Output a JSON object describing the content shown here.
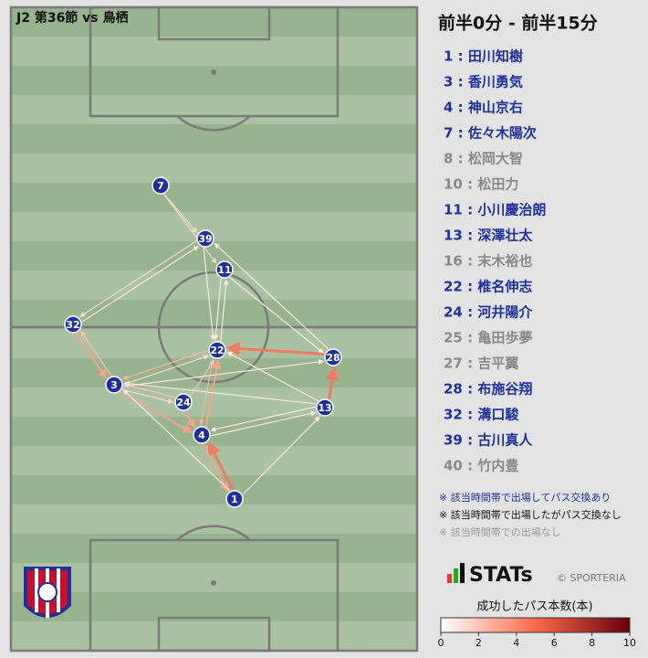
{
  "header": {
    "title": "J2 第36節 vs 鳥栖",
    "period": "前半0分 - 前半15分"
  },
  "players": [
    {
      "label": "1 : 田川知樹",
      "color": "#1f2f9c"
    },
    {
      "label": "3 : 香川勇気",
      "color": "#1f2f9c"
    },
    {
      "label": "4 : 神山京右",
      "color": "#1f2f9c"
    },
    {
      "label": "7 : 佐々木陽次",
      "color": "#1f2f9c"
    },
    {
      "label": "8 : 松岡大智",
      "color": "#888888"
    },
    {
      "label": "10 : 松田力",
      "color": "#888888"
    },
    {
      "label": "11 : 小川慶治朗",
      "color": "#1f2f9c"
    },
    {
      "label": "13 : 深澤壮太",
      "color": "#1f2f9c"
    },
    {
      "label": "16 : 末木裕也",
      "color": "#888888"
    },
    {
      "label": "22 : 椎名伸志",
      "color": "#1f2f9c"
    },
    {
      "label": "24 : 河井陽介",
      "color": "#1f2f9c"
    },
    {
      "label": "25 : 亀田歩夢",
      "color": "#888888"
    },
    {
      "label": "27 : 吉平翼",
      "color": "#888888"
    },
    {
      "label": "28 : 布施谷翔",
      "color": "#1f2f9c"
    },
    {
      "label": "32 : 溝口駿",
      "color": "#1f2f9c"
    },
    {
      "label": "39 : 古川真人",
      "color": "#1f2f9c"
    },
    {
      "label": "40 : 竹内豊",
      "color": "#888888"
    }
  ],
  "nodes": [
    {
      "label": "7"
    },
    {
      "label": "39"
    },
    {
      "label": "11"
    },
    {
      "label": "32"
    },
    {
      "label": "22"
    },
    {
      "label": "28"
    },
    {
      "label": "3"
    },
    {
      "label": "24"
    },
    {
      "label": "13"
    },
    {
      "label": "4"
    },
    {
      "label": "1"
    }
  ],
  "notes": [
    {
      "text": "※ 該当時間帯で出場してパス交換あり",
      "color": "#1f2f9c"
    },
    {
      "text": "※ 該当時間帯で出場したがパス交換なし",
      "color": "#111111"
    },
    {
      "text": "※ 該当時間帯での出場なし",
      "color": "#999999"
    }
  ],
  "brand": {
    "name": "STATs",
    "credit": "© SPORTERIA"
  },
  "colorbar": {
    "label": "成功したパス本数(本)",
    "range": [
      0,
      10
    ],
    "ticks": [
      0,
      2,
      4,
      6,
      8,
      10
    ]
  }
}
